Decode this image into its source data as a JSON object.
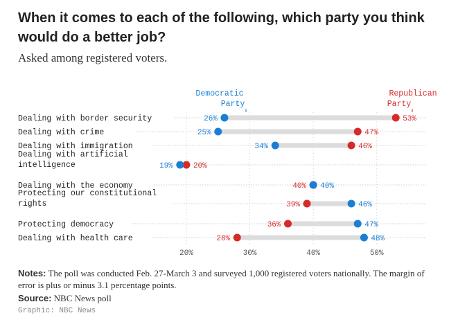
{
  "header": {
    "title": "When it comes to each of the following, which party you think would do a better job?",
    "subtitle": "Asked among registered voters."
  },
  "legend": {
    "dem_line1": "Democratic",
    "dem_line2": "Party",
    "rep_line1": "Republican",
    "rep_line2": "Party"
  },
  "colors": {
    "democratic": "#1a7fd4",
    "republican": "#d62b2b",
    "connector": "#dcdcdc",
    "gridline": "#cfcfcf",
    "label": "#222222"
  },
  "chart_data": {
    "type": "dot-plot",
    "categories": [
      [
        "Dealing with border security"
      ],
      [
        "Dealing with crime"
      ],
      [
        "Dealing with immigration"
      ],
      [
        "Dealing with artificial",
        "intelligence"
      ],
      [
        "Dealing with the economy"
      ],
      [
        "Protecting our constitutional",
        "rights"
      ],
      [
        "Protecting democracy"
      ],
      [
        "Dealing with health care"
      ]
    ],
    "series": [
      {
        "name": "Democratic Party",
        "values": [
          26,
          25,
          34,
          19,
          40,
          46,
          47,
          48
        ]
      },
      {
        "name": "Republican Party",
        "values": [
          53,
          47,
          46,
          20,
          40,
          39,
          36,
          28
        ]
      }
    ],
    "xticks": [
      20,
      30,
      40,
      50
    ],
    "xlim": [
      14,
      58
    ],
    "value_suffix": "%"
  },
  "footer": {
    "notes_label": "Notes:",
    "notes_text": "The poll was conducted Feb. 27-March 3 and surveyed 1,000 registered voters nationally. The margin of error is plus or minus 3.1 percentage points.",
    "source_label": "Source:",
    "source_text": "NBC News poll",
    "credit": "Graphic: NBC News"
  }
}
